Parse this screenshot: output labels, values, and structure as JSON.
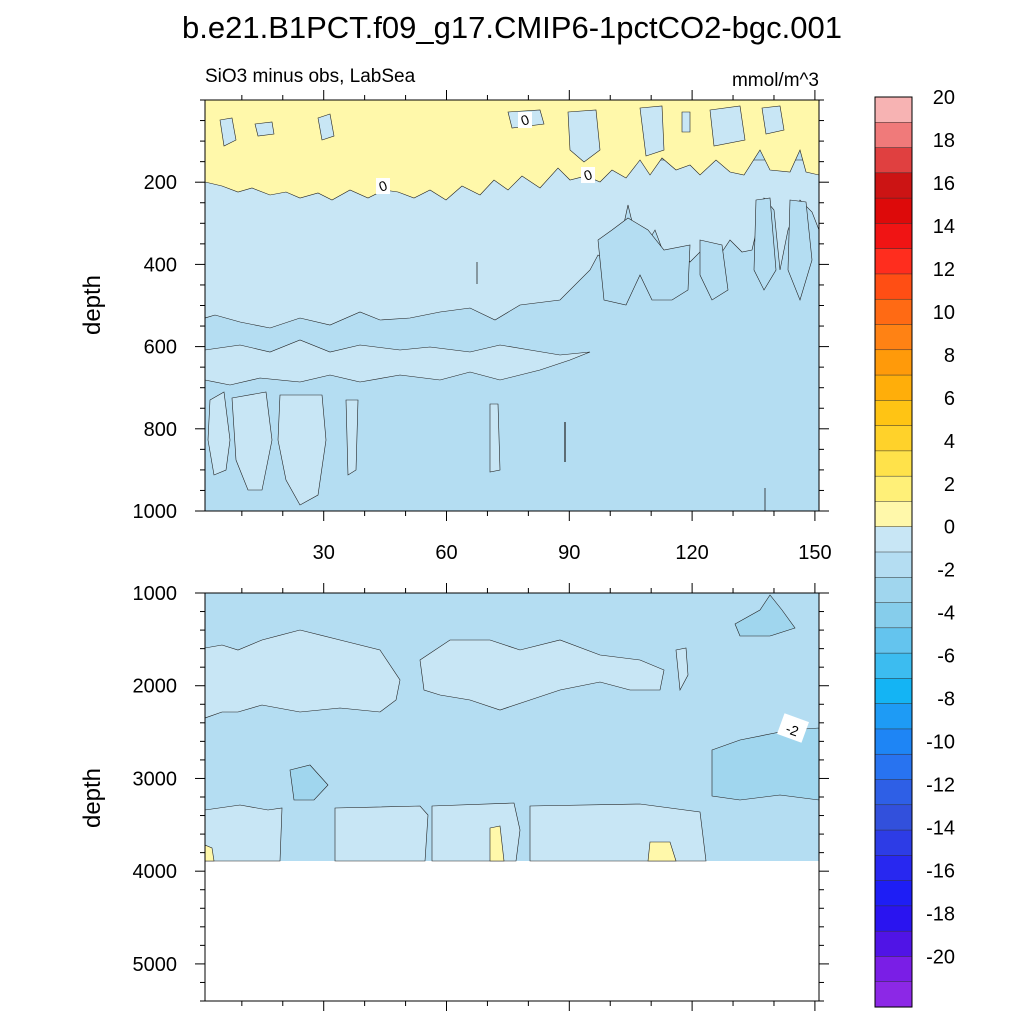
{
  "chart_data": {
    "type": "contour",
    "title": "b.e21.B1PCT.f09_g17.CMIP6-1pctCO2-bgc.001",
    "subtitle_left": "SiO3 minus obs, LabSea",
    "subtitle_right": "mmol/m^3",
    "x_range": [
      1,
      151
    ],
    "x_ticks": [
      30,
      60,
      90,
      120,
      150
    ],
    "contour_labels": [
      "0",
      "0",
      "0",
      "-2"
    ],
    "panels": [
      {
        "name": "upper",
        "ylabel": "depth",
        "y_range": [
          0,
          1000
        ],
        "y_ticks": [
          200,
          400,
          600,
          800,
          1000
        ],
        "regions": [
          {
            "value": "0 to 2",
            "depth_range": [
              0,
              220
            ],
            "note": "positive anomaly near surface"
          },
          {
            "value": "-2 to 0",
            "depth_range": [
              220,
              1000
            ]
          }
        ]
      },
      {
        "name": "lower",
        "ylabel": "depth",
        "y_range": [
          1000,
          5400
        ],
        "y_ticks": [
          1000,
          2000,
          3000,
          4000,
          5000
        ],
        "data_bottom": 3870,
        "regions": [
          {
            "value": "-2 to 0",
            "depth_range": [
              1000,
              3870
            ]
          },
          {
            "value": "-4 to -2",
            "depth_range": [
              2500,
              3250
            ],
            "note": "patches near years 10 and 140"
          }
        ]
      }
    ],
    "colorbar": {
      "levels": [
        20,
        18,
        16,
        14,
        12,
        10,
        8,
        6,
        4,
        2,
        0,
        -2,
        -4,
        -6,
        -8,
        -10,
        -12,
        -14,
        -16,
        -18,
        -20
      ],
      "colors": [
        "#f7b3b3",
        "#f07a7a",
        "#e04040",
        "#cc1414",
        "#dd0a0a",
        "#f01414",
        "#ff2d1e",
        "#ff4e14",
        "#ff6a14",
        "#ff8214",
        "#ff9a0a",
        "#ffae0a",
        "#ffc414",
        "#ffd22a",
        "#ffe24a",
        "#fff078",
        "#fff8aa",
        "#c8e6f5",
        "#b4ddf2",
        "#a0d6ee",
        "#86cdeb",
        "#64c4ee",
        "#3cbcf0",
        "#14b4f4",
        "#1e9bf5",
        "#1e85f5",
        "#2873f0",
        "#2e5fe6",
        "#3250dc",
        "#2d3ce6",
        "#2828f0",
        "#1e1ef5",
        "#2a14f0",
        "#5014e6",
        "#7a1ee6",
        "#8c28e6"
      ]
    }
  }
}
